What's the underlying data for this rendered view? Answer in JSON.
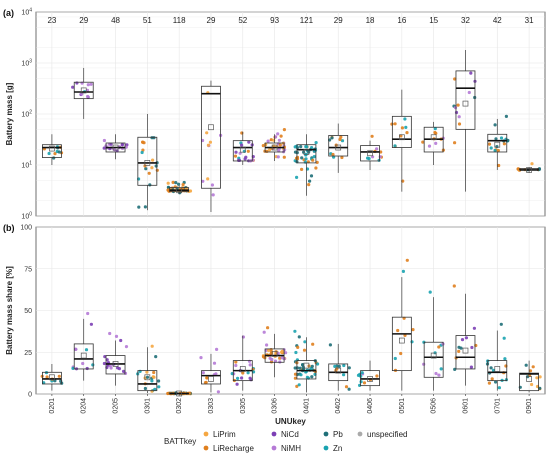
{
  "chart_data": [
    {
      "panel": "(a)",
      "type": "box",
      "ylabel": "Battery mass [g]",
      "yscale": "log",
      "ylim": [
        1,
        10000
      ],
      "yticks": [
        1,
        10,
        100,
        1000,
        10000
      ],
      "ytick_labels": [
        "10^0",
        "10^1",
        "10^2",
        "10^3",
        "10^4"
      ],
      "categories": [
        "0201",
        "0204",
        "0205",
        "0301",
        "0302",
        "0303",
        "0305",
        "0306",
        "0401",
        "0402",
        "0406",
        "0501",
        "0506",
        "0601",
        "0701",
        "0901"
      ],
      "counts": [
        "23",
        "29",
        "48",
        "51",
        "118",
        "29",
        "52",
        "93",
        "121",
        "29",
        "18",
        "16",
        "15",
        "32",
        "42",
        "31"
      ],
      "box_stats": [
        {
          "q1": 14,
          "median": 22,
          "q3": 25,
          "lo": 10,
          "hi": 40,
          "mean": 21
        },
        {
          "q1": 200,
          "median": 270,
          "q3": 420,
          "lo": 80,
          "hi": 800,
          "mean": 290
        },
        {
          "q1": 18,
          "median": 22,
          "q3": 27,
          "lo": 13,
          "hi": 40,
          "mean": 22
        },
        {
          "q1": 4,
          "median": 11,
          "q3": 35,
          "lo": 1.3,
          "hi": 100,
          "mean": 11
        },
        {
          "q1": 3,
          "median": 3.2,
          "q3": 3.6,
          "lo": 2.7,
          "hi": 4,
          "mean": 3.2
        },
        {
          "q1": 3.5,
          "median": 250,
          "q3": 350,
          "lo": 1.2,
          "hi": 450,
          "mean": 55
        },
        {
          "q1": 12,
          "median": 22,
          "q3": 30,
          "lo": 10,
          "hi": 45,
          "mean": 20
        },
        {
          "q1": 18,
          "median": 22,
          "q3": 27,
          "lo": 12,
          "hi": 40,
          "mean": 22
        },
        {
          "q1": 11,
          "median": 20,
          "q3": 25,
          "lo": 2.5,
          "hi": 40,
          "mean": 18
        },
        {
          "q1": 15,
          "median": 22,
          "q3": 38,
          "lo": 7,
          "hi": 65,
          "mean": 22
        },
        {
          "q1": 12,
          "median": 18,
          "q3": 24,
          "lo": 8,
          "hi": 30,
          "mean": 17
        },
        {
          "q1": 22,
          "median": 32,
          "q3": 90,
          "lo": 3,
          "hi": 300,
          "mean": 35
        },
        {
          "q1": 18,
          "median": 32,
          "q3": 55,
          "lo": 10,
          "hi": 70,
          "mean": 35
        },
        {
          "q1": 50,
          "median": 320,
          "q3": 700,
          "lo": 3,
          "hi": 1800,
          "mean": 160
        },
        {
          "q1": 18,
          "median": 30,
          "q3": 40,
          "lo": 8,
          "hi": 80,
          "mean": 25
        },
        {
          "q1": 8,
          "median": 8,
          "q3": 8.5,
          "lo": 7,
          "hi": 9,
          "mean": 8
        }
      ]
    },
    {
      "panel": "(b)",
      "type": "box",
      "ylabel": "Battery mass share [%]",
      "xlabel": "UNUkey",
      "ylim": [
        0,
        100
      ],
      "yticks": [
        0,
        25,
        50,
        75,
        100
      ],
      "ytick_labels": [
        "0",
        "25",
        "50",
        "75",
        "100"
      ],
      "categories": [
        "0201",
        "0204",
        "0205",
        "0301",
        "0302",
        "0303",
        "0305",
        "0306",
        "0401",
        "0402",
        "0406",
        "0501",
        "0506",
        "0601",
        "0701",
        "0901"
      ],
      "box_stats": [
        {
          "q1": 6,
          "median": 9,
          "q3": 13,
          "lo": 2,
          "hi": 18,
          "mean": 10
        },
        {
          "q1": 15,
          "median": 21,
          "q3": 30,
          "lo": 8,
          "hi": 45,
          "mean": 23
        },
        {
          "q1": 12,
          "median": 18,
          "q3": 23,
          "lo": 5,
          "hi": 32,
          "mean": 18
        },
        {
          "q1": 2,
          "median": 6,
          "q3": 14,
          "lo": 0.5,
          "hi": 28,
          "mean": 10
        },
        {
          "q1": 0.2,
          "median": 0.3,
          "q3": 0.5,
          "lo": 0,
          "hi": 0.8,
          "mean": 0.3
        },
        {
          "q1": 6,
          "median": 11,
          "q3": 14,
          "lo": 1,
          "hi": 24,
          "mean": 9
        },
        {
          "q1": 8,
          "median": 14,
          "q3": 20,
          "lo": 2,
          "hi": 35,
          "mean": 15
        },
        {
          "q1": 19,
          "median": 23,
          "q3": 27,
          "lo": 10,
          "hi": 36,
          "mean": 24
        },
        {
          "q1": 9,
          "median": 14,
          "q3": 20,
          "lo": 1,
          "hi": 34,
          "mean": 17
        },
        {
          "q1": 8,
          "median": 13,
          "q3": 18,
          "lo": 2,
          "hi": 30,
          "mean": 14
        },
        {
          "q1": 5,
          "median": 9,
          "q3": 14,
          "lo": 2,
          "hi": 20,
          "mean": 9
        },
        {
          "q1": 14,
          "median": 36,
          "q3": 46,
          "lo": 2,
          "hi": 70,
          "mean": 32
        },
        {
          "q1": 10,
          "median": 22,
          "q3": 31,
          "lo": 2,
          "hi": 58,
          "mean": 23
        },
        {
          "q1": 15,
          "median": 22,
          "q3": 35,
          "lo": 5,
          "hi": 60,
          "mean": 26
        },
        {
          "q1": 8,
          "median": 13,
          "q3": 20,
          "lo": 2,
          "hi": 38,
          "mean": 15
        },
        {
          "q1": 2,
          "median": 12,
          "q3": 12.5,
          "lo": 1,
          "hi": 20,
          "mean": 9
        }
      ]
    }
  ],
  "legend": {
    "title": "BATTkey",
    "items": [
      {
        "label": "LiPrim",
        "color": "#f5a742"
      },
      {
        "label": "LiRecharge",
        "color": "#e0801e"
      },
      {
        "label": "NiCd",
        "color": "#7c3fb5"
      },
      {
        "label": "NiMH",
        "color": "#b57ad6"
      },
      {
        "label": "Pb",
        "color": "#1f6f78"
      },
      {
        "label": "Zn",
        "color": "#19a3b0"
      },
      {
        "label": "unspecified",
        "color": "#aaaaaa"
      }
    ]
  }
}
